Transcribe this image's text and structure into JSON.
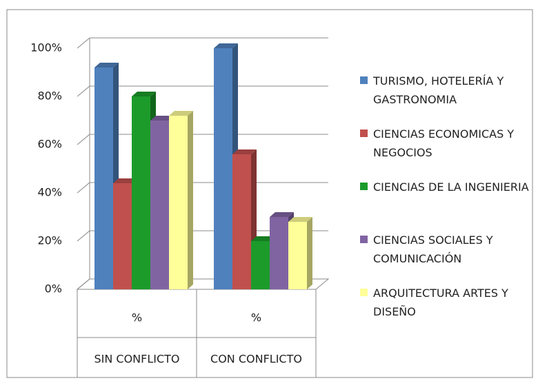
{
  "chart_data": {
    "type": "bar3d",
    "categories": [
      "SIN CONFLICTO",
      "CON CONFLICTO"
    ],
    "category_sublabels": [
      "%",
      "%"
    ],
    "series": [
      {
        "name": "TURISMO, HOTELERÍA Y GASTRONOMIA",
        "color": "#4f81bd",
        "values": [
          92,
          100
        ]
      },
      {
        "name": "CIENCIAS ECONOMICAS Y NEGOCIOS",
        "color": "#c0504d",
        "values": [
          44,
          56
        ]
      },
      {
        "name": "CIENCIAS DE LA INGENIERIA",
        "color": "#1c9b2b",
        "values": [
          80,
          20
        ]
      },
      {
        "name": "CIENCIAS SOCIALES Y COMUNICACIÓN",
        "color": "#8064a2",
        "values": [
          70,
          30
        ]
      },
      {
        "name": "ARQUITECTURA ARTES Y DISEÑO",
        "color": "#ffff99",
        "values": [
          72,
          28
        ]
      }
    ],
    "ylim": [
      0,
      100
    ],
    "yticks": [
      {
        "value": 0,
        "label": "0%"
      },
      {
        "value": 20,
        "label": "20%"
      },
      {
        "value": 40,
        "label": "40%"
      },
      {
        "value": 60,
        "label": "60%"
      },
      {
        "value": 80,
        "label": "80%"
      },
      {
        "value": 100,
        "label": "100%"
      }
    ],
    "grid": true,
    "legend": "right"
  }
}
